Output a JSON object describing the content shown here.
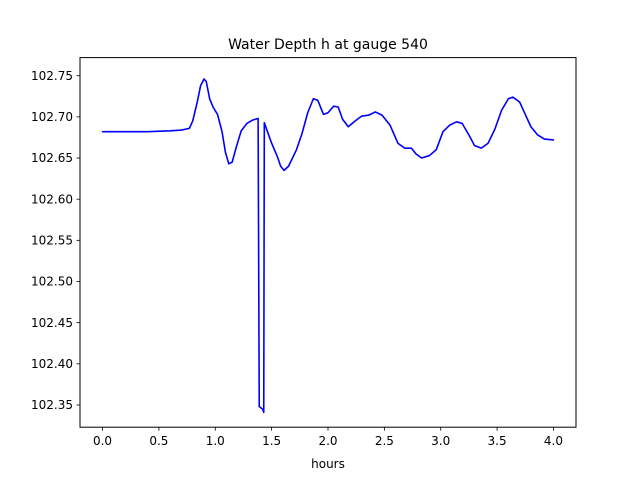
{
  "chart_data": {
    "type": "line",
    "title": "Water Depth h at gauge 540",
    "xlabel": "hours",
    "ylabel": "",
    "xlim": [
      -0.2,
      4.2
    ],
    "ylim": [
      102.323,
      102.772
    ],
    "xticks": [
      0.0,
      0.5,
      1.0,
      1.5,
      2.0,
      2.5,
      3.0,
      3.5,
      4.0
    ],
    "xtick_labels": [
      "0.0",
      "0.5",
      "1.0",
      "1.5",
      "2.0",
      "2.5",
      "3.0",
      "3.5",
      "4.0"
    ],
    "yticks": [
      102.35,
      102.4,
      102.45,
      102.5,
      102.55,
      102.6,
      102.65,
      102.7,
      102.75
    ],
    "ytick_labels": [
      "102.35",
      "102.40",
      "102.45",
      "102.50",
      "102.55",
      "102.60",
      "102.65",
      "102.70",
      "102.75"
    ],
    "grid": false,
    "series": [
      {
        "color": "#0000ff",
        "points": [
          [
            0.0,
            102.682
          ],
          [
            0.2,
            102.682
          ],
          [
            0.4,
            102.682
          ],
          [
            0.6,
            102.683
          ],
          [
            0.7,
            102.684
          ],
          [
            0.77,
            102.686
          ],
          [
            0.8,
            102.695
          ],
          [
            0.84,
            102.718
          ],
          [
            0.87,
            102.738
          ],
          [
            0.9,
            102.746
          ],
          [
            0.92,
            102.743
          ],
          [
            0.95,
            102.722
          ],
          [
            0.98,
            102.712
          ],
          [
            1.02,
            102.703
          ],
          [
            1.06,
            102.682
          ],
          [
            1.09,
            102.657
          ],
          [
            1.12,
            102.643
          ],
          [
            1.15,
            102.645
          ],
          [
            1.19,
            102.665
          ],
          [
            1.23,
            102.683
          ],
          [
            1.28,
            102.692
          ],
          [
            1.33,
            102.696
          ],
          [
            1.38,
            102.698
          ],
          [
            1.39,
            102.348
          ],
          [
            1.42,
            102.345
          ],
          [
            1.43,
            102.341
          ],
          [
            1.435,
            102.693
          ],
          [
            1.45,
            102.687
          ],
          [
            1.5,
            102.668
          ],
          [
            1.55,
            102.652
          ],
          [
            1.58,
            102.64
          ],
          [
            1.61,
            102.635
          ],
          [
            1.65,
            102.64
          ],
          [
            1.72,
            102.66
          ],
          [
            1.77,
            102.68
          ],
          [
            1.82,
            102.705
          ],
          [
            1.87,
            102.722
          ],
          [
            1.91,
            102.72
          ],
          [
            1.96,
            102.703
          ],
          [
            2.0,
            102.705
          ],
          [
            2.05,
            102.713
          ],
          [
            2.09,
            102.712
          ],
          [
            2.13,
            102.697
          ],
          [
            2.18,
            102.688
          ],
          [
            2.24,
            102.695
          ],
          [
            2.3,
            102.701
          ],
          [
            2.36,
            102.702
          ],
          [
            2.42,
            102.706
          ],
          [
            2.48,
            102.702
          ],
          [
            2.55,
            102.69
          ],
          [
            2.62,
            102.668
          ],
          [
            2.68,
            102.662
          ],
          [
            2.74,
            102.662
          ],
          [
            2.78,
            102.655
          ],
          [
            2.83,
            102.65
          ],
          [
            2.9,
            102.653
          ],
          [
            2.96,
            102.66
          ],
          [
            3.02,
            102.682
          ],
          [
            3.08,
            102.69
          ],
          [
            3.14,
            102.694
          ],
          [
            3.19,
            102.692
          ],
          [
            3.25,
            102.678
          ],
          [
            3.3,
            102.665
          ],
          [
            3.36,
            102.662
          ],
          [
            3.42,
            102.668
          ],
          [
            3.48,
            102.685
          ],
          [
            3.54,
            102.708
          ],
          [
            3.6,
            102.722
          ],
          [
            3.64,
            102.724
          ],
          [
            3.7,
            102.718
          ],
          [
            3.75,
            102.703
          ],
          [
            3.8,
            102.688
          ],
          [
            3.86,
            102.678
          ],
          [
            3.92,
            102.673
          ],
          [
            4.0,
            102.672
          ]
        ]
      }
    ]
  }
}
